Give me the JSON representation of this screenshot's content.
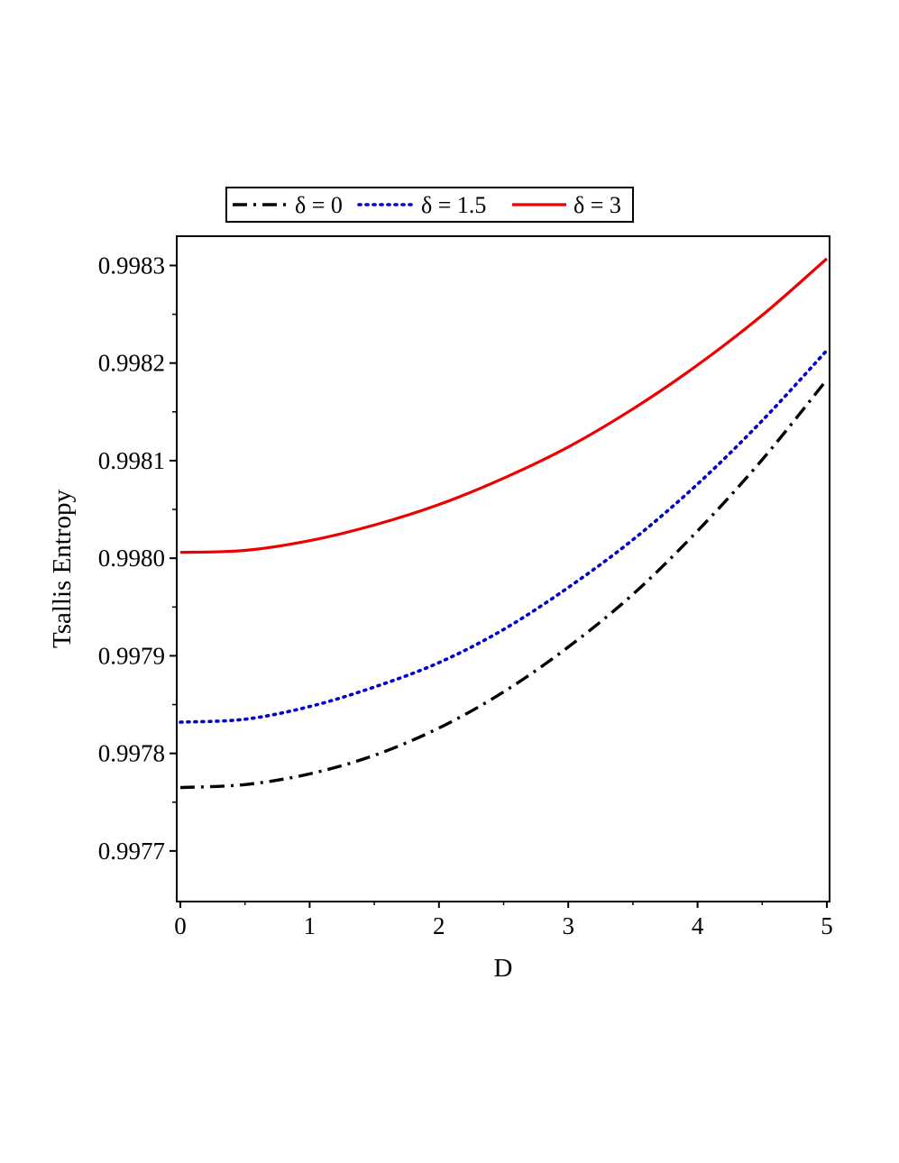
{
  "chart_data": {
    "type": "line",
    "title": "",
    "xlabel": "D",
    "ylabel": "Tsallis Entropy",
    "xlim": [
      0,
      5
    ],
    "ylim": [
      0.99765,
      0.99833
    ],
    "x_ticks": [
      0,
      1,
      2,
      3,
      4,
      5
    ],
    "x_tick_labels": [
      "0",
      "1",
      "2",
      "3",
      "4",
      "5"
    ],
    "y_ticks": [
      0.9977,
      0.9978,
      0.9979,
      0.998,
      0.9981,
      0.9982,
      0.9983
    ],
    "y_tick_labels": [
      "0.9977",
      "0.9978",
      "0.9979",
      "0.9980",
      "0.9981",
      "0.9982",
      "0.9983"
    ],
    "grid": false,
    "legend_position": "top",
    "x": [
      0,
      0.5,
      1,
      1.5,
      2,
      2.5,
      3,
      3.5,
      4,
      4.5,
      5
    ],
    "series": [
      {
        "name": "δ = 0",
        "color": "#000000",
        "style": "dashdot",
        "values": [
          0.997765,
          0.997768,
          0.997779,
          0.997798,
          0.997826,
          0.997863,
          0.997909,
          0.997963,
          0.998028,
          0.998101,
          0.998183
        ]
      },
      {
        "name": "δ = 1.5",
        "color": "#0000cc",
        "style": "dotted",
        "values": [
          0.997832,
          0.997835,
          0.997848,
          0.997868,
          0.997893,
          0.997927,
          0.99797,
          0.998019,
          0.998076,
          0.998141,
          0.998213
        ]
      },
      {
        "name": "δ = 3",
        "color": "#ee0000",
        "style": "solid",
        "values": [
          0.998006,
          0.998008,
          0.998018,
          0.998034,
          0.998055,
          0.998082,
          0.998114,
          0.998153,
          0.998198,
          0.998249,
          0.998307
        ]
      }
    ]
  }
}
